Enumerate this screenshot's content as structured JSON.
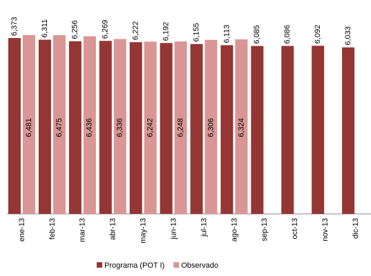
{
  "chart_data": {
    "type": "bar",
    "categories": [
      "ene-13",
      "feb-13",
      "mar-13",
      "abr-13",
      "may-13",
      "jun-13",
      "jul-13",
      "ago-13",
      "sep-13",
      "oct-13",
      "nov-13",
      "dic-13"
    ],
    "series": [
      {
        "name": "Programa (POT I)",
        "color": "#943634",
        "values": [
          6373,
          6311,
          6256,
          6269,
          6222,
          6192,
          6155,
          6113,
          6085,
          6086,
          6092,
          6033
        ],
        "value_labels": [
          "6,373",
          "6,311",
          "6,256",
          "6,269",
          "6,222",
          "6,192",
          "6,155",
          "6,113",
          "6,085",
          "6,086",
          "6,092",
          "6,033"
        ]
      },
      {
        "name": "Observado",
        "color": "#d99694",
        "values": [
          6481,
          6475,
          6436,
          6336,
          6242,
          6248,
          6306,
          6324,
          null,
          null,
          null,
          null
        ],
        "value_labels": [
          "6,481",
          "6,475",
          "6,436",
          "6,336",
          "6,242",
          "6,248",
          "6,306",
          "6,324",
          null,
          null,
          null,
          null
        ]
      }
    ],
    "ylim": [
      0,
      7000
    ]
  }
}
